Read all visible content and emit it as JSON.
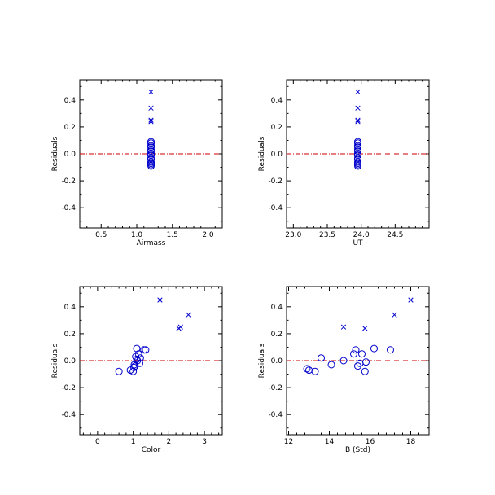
{
  "colors": {
    "marker": "#0000cc",
    "reference_line": "#cc0000",
    "axis": "#000000"
  },
  "chart_data": [
    {
      "type": "scatter",
      "xlabel": "Airmass",
      "ylabel": "Residuals",
      "xlim": [
        0.2,
        2.2
      ],
      "ylim": [
        -0.55,
        0.55
      ],
      "xticks": [
        0.5,
        1.0,
        1.5,
        2.0
      ],
      "xtick_labels": [
        "0.5",
        "1.0",
        "1.5",
        "2.0"
      ],
      "yticks": [
        -0.4,
        -0.2,
        0.0,
        0.2,
        0.4
      ],
      "ytick_labels": [
        "-0.4",
        "-0.2",
        "0.0",
        "0.2",
        "0.4"
      ],
      "reference_line_y": 0.0,
      "series": [
        {
          "marker": "circle",
          "x": [
            1.2,
            1.2,
            1.2,
            1.2,
            1.2,
            1.2,
            1.2,
            1.2,
            1.2,
            1.2,
            1.2,
            1.2,
            1.2,
            1.2,
            1.2
          ],
          "y": [
            0.09,
            0.08,
            0.06,
            0.05,
            0.03,
            0.02,
            0.0,
            0.0,
            -0.01,
            -0.03,
            -0.04,
            -0.06,
            -0.07,
            -0.08,
            -0.09
          ]
        },
        {
          "marker": "cross",
          "x": [
            1.2,
            1.2,
            1.2,
            1.2
          ],
          "y": [
            0.46,
            0.34,
            0.25,
            0.24
          ]
        }
      ]
    },
    {
      "type": "scatter",
      "xlabel": "UT",
      "ylabel": "Residuals",
      "xlim": [
        22.9,
        25.0
      ],
      "ylim": [
        -0.55,
        0.55
      ],
      "xticks": [
        23.0,
        23.5,
        24.0,
        24.5
      ],
      "xtick_labels": [
        "23.0",
        "23.5",
        "24.0",
        "24.5"
      ],
      "yticks": [
        -0.4,
        -0.2,
        0.0,
        0.2,
        0.4
      ],
      "ytick_labels": [
        "-0.4",
        "-0.2",
        "0.0",
        "0.2",
        "0.4"
      ],
      "reference_line_y": 0.0,
      "series": [
        {
          "marker": "circle",
          "x": [
            23.95,
            23.95,
            23.95,
            23.95,
            23.95,
            23.95,
            23.95,
            23.95,
            23.95,
            23.95,
            23.95,
            23.95,
            23.95,
            23.95,
            23.95
          ],
          "y": [
            0.09,
            0.08,
            0.06,
            0.05,
            0.03,
            0.02,
            0.0,
            0.0,
            -0.01,
            -0.03,
            -0.04,
            -0.06,
            -0.07,
            -0.08,
            -0.09
          ]
        },
        {
          "marker": "cross",
          "x": [
            23.95,
            23.95,
            23.95,
            23.95
          ],
          "y": [
            0.46,
            0.34,
            0.25,
            0.24
          ]
        }
      ]
    },
    {
      "type": "scatter",
      "xlabel": "Color",
      "ylabel": "Residuals",
      "xlim": [
        -0.5,
        3.5
      ],
      "ylim": [
        -0.55,
        0.55
      ],
      "xticks": [
        0,
        1,
        2,
        3
      ],
      "xtick_labels": [
        "0",
        "1",
        "2",
        "3"
      ],
      "yticks": [
        -0.4,
        -0.2,
        0.0,
        0.2,
        0.4
      ],
      "ytick_labels": [
        "-0.4",
        "-0.2",
        "0.0",
        "0.2",
        "0.4"
      ],
      "reference_line_y": 0.0,
      "series": [
        {
          "marker": "circle",
          "x": [
            0.6,
            0.92,
            1.0,
            1.02,
            1.05,
            1.07,
            1.1,
            1.12,
            1.15,
            1.18,
            1.3,
            1.35,
            1.1,
            1.03,
            1.2
          ],
          "y": [
            -0.08,
            -0.07,
            -0.08,
            -0.05,
            -0.04,
            0.03,
            0.09,
            0.0,
            0.05,
            -0.02,
            0.08,
            0.08,
            0.01,
            -0.03,
            0.02
          ]
        },
        {
          "marker": "cross",
          "x": [
            1.75,
            2.28,
            2.33,
            2.55
          ],
          "y": [
            0.45,
            0.24,
            0.25,
            0.34
          ]
        }
      ]
    },
    {
      "type": "scatter",
      "xlabel": "B (Std)",
      "ylabel": "Residuals",
      "xlim": [
        11.9,
        18.9
      ],
      "ylim": [
        -0.55,
        0.55
      ],
      "xticks": [
        12,
        14,
        16,
        18
      ],
      "xtick_labels": [
        "12",
        "14",
        "16",
        "18"
      ],
      "yticks": [
        -0.4,
        -0.2,
        0.0,
        0.2,
        0.4
      ],
      "ytick_labels": [
        "-0.4",
        "-0.2",
        "0.0",
        "0.2",
        "0.4"
      ],
      "reference_line_y": 0.0,
      "series": [
        {
          "marker": "circle",
          "x": [
            12.9,
            13.0,
            13.3,
            13.6,
            14.1,
            14.7,
            15.2,
            15.3,
            15.4,
            15.5,
            15.75,
            15.8,
            16.2,
            17.0,
            15.6
          ],
          "y": [
            -0.06,
            -0.07,
            -0.08,
            0.02,
            -0.03,
            0.0,
            0.05,
            0.08,
            -0.04,
            -0.02,
            -0.08,
            -0.01,
            0.09,
            0.08,
            0.05
          ]
        },
        {
          "marker": "cross",
          "x": [
            14.7,
            15.75,
            17.2,
            18.0
          ],
          "y": [
            0.25,
            0.24,
            0.34,
            0.45
          ]
        }
      ]
    }
  ]
}
